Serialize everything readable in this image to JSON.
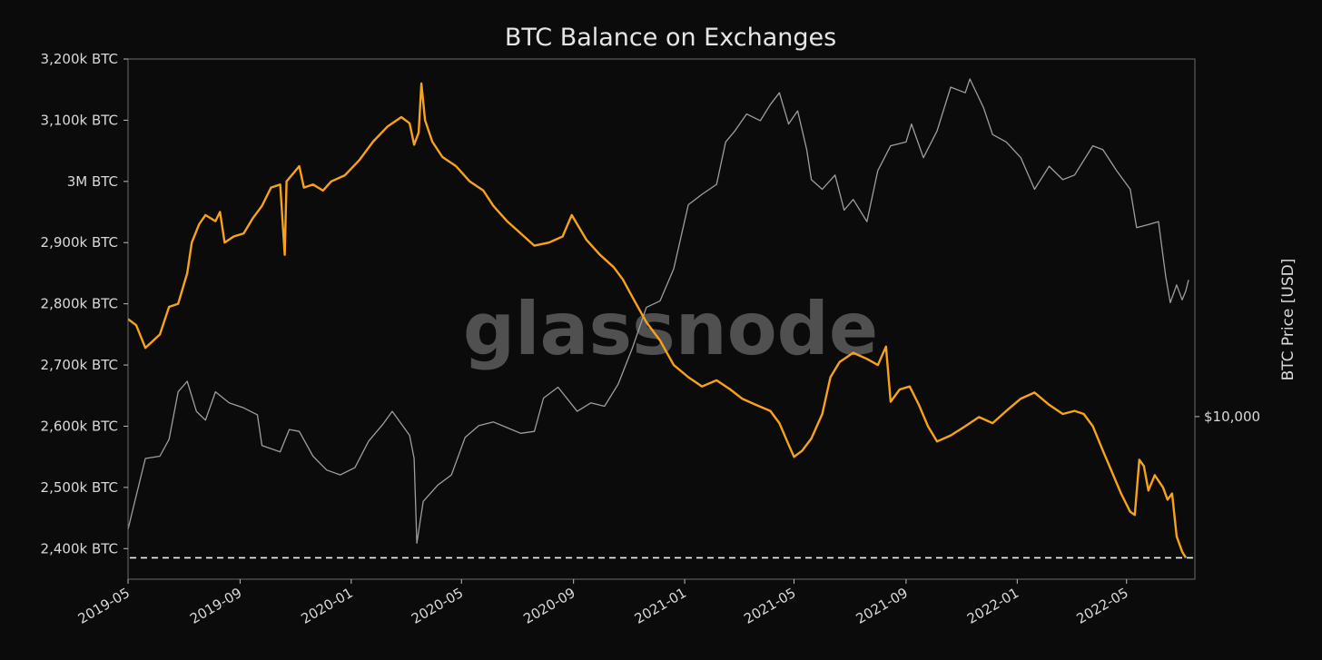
{
  "chart_data": {
    "type": "line",
    "title": "BTC Balance on Exchanges",
    "watermark": "glassnode",
    "ylabel_right": "BTC Price [USD]",
    "y_left_range": [
      2350,
      3200
    ],
    "y_left_ticks": [
      {
        "value": 3200,
        "label": "3,200k BTC"
      },
      {
        "value": 3100,
        "label": "3,100k BTC"
      },
      {
        "value": 3000,
        "label": "3M BTC"
      },
      {
        "value": 2900,
        "label": "2,900k BTC"
      },
      {
        "value": 2800,
        "label": "2,800k BTC"
      },
      {
        "value": 2700,
        "label": "2,700k BTC"
      },
      {
        "value": 2600,
        "label": "2,600k BTC"
      },
      {
        "value": 2500,
        "label": "2,500k BTC"
      },
      {
        "value": 2400,
        "label": "2,400k BTC"
      }
    ],
    "y_right_scale": "log",
    "y_right_range": [
      4000,
      75000
    ],
    "y_right_ticks": [
      {
        "value": 10000,
        "label": "$10,000"
      }
    ],
    "x_range": [
      "2019-05-01",
      "2022-07-15"
    ],
    "x_ticks": [
      "2019-05",
      "2019-09",
      "2020-01",
      "2020-05",
      "2020-09",
      "2021-01",
      "2021-05",
      "2021-09",
      "2022-01",
      "2022-05"
    ],
    "reference_line": {
      "axis": "left",
      "value": 2385,
      "style": "dashed",
      "color": "#f2f2f2"
    },
    "series": [
      {
        "axis": "left",
        "color": "#f7a21b",
        "points": [
          [
            "2019-05-01",
            2775
          ],
          [
            "2019-05-10",
            2765
          ],
          [
            "2019-05-20",
            2728
          ],
          [
            "2019-06-05",
            2750
          ],
          [
            "2019-06-15",
            2795
          ],
          [
            "2019-06-25",
            2800
          ],
          [
            "2019-07-05",
            2850
          ],
          [
            "2019-07-10",
            2900
          ],
          [
            "2019-07-18",
            2930
          ],
          [
            "2019-07-25",
            2945
          ],
          [
            "2019-08-05",
            2935
          ],
          [
            "2019-08-10",
            2950
          ],
          [
            "2019-08-15",
            2900
          ],
          [
            "2019-08-25",
            2910
          ],
          [
            "2019-09-05",
            2915
          ],
          [
            "2019-09-15",
            2940
          ],
          [
            "2019-09-25",
            2960
          ],
          [
            "2019-10-05",
            2990
          ],
          [
            "2019-10-15",
            2995
          ],
          [
            "2019-10-20",
            2880
          ],
          [
            "2019-10-22",
            3000
          ],
          [
            "2019-11-05",
            3025
          ],
          [
            "2019-11-10",
            2990
          ],
          [
            "2019-11-20",
            2995
          ],
          [
            "2019-12-01",
            2985
          ],
          [
            "2019-12-10",
            3000
          ],
          [
            "2019-12-25",
            3010
          ],
          [
            "2020-01-10",
            3035
          ],
          [
            "2020-01-25",
            3065
          ],
          [
            "2020-02-10",
            3090
          ],
          [
            "2020-02-25",
            3105
          ],
          [
            "2020-03-05",
            3095
          ],
          [
            "2020-03-10",
            3060
          ],
          [
            "2020-03-15",
            3080
          ],
          [
            "2020-03-18",
            3160
          ],
          [
            "2020-03-22",
            3100
          ],
          [
            "2020-03-30",
            3065
          ],
          [
            "2020-04-10",
            3040
          ],
          [
            "2020-04-25",
            3025
          ],
          [
            "2020-05-10",
            3000
          ],
          [
            "2020-05-25",
            2985
          ],
          [
            "2020-06-05",
            2960
          ],
          [
            "2020-06-20",
            2935
          ],
          [
            "2020-07-05",
            2915
          ],
          [
            "2020-07-20",
            2895
          ],
          [
            "2020-08-05",
            2900
          ],
          [
            "2020-08-20",
            2910
          ],
          [
            "2020-08-30",
            2945
          ],
          [
            "2020-09-05",
            2930
          ],
          [
            "2020-09-15",
            2905
          ],
          [
            "2020-09-30",
            2880
          ],
          [
            "2020-10-15",
            2860
          ],
          [
            "2020-10-25",
            2840
          ],
          [
            "2020-11-05",
            2810
          ],
          [
            "2020-11-20",
            2770
          ],
          [
            "2020-12-05",
            2740
          ],
          [
            "2020-12-20",
            2700
          ],
          [
            "2021-01-05",
            2680
          ],
          [
            "2021-01-20",
            2665
          ],
          [
            "2021-02-05",
            2675
          ],
          [
            "2021-02-20",
            2660
          ],
          [
            "2021-03-05",
            2645
          ],
          [
            "2021-03-20",
            2635
          ],
          [
            "2021-04-05",
            2625
          ],
          [
            "2021-04-15",
            2605
          ],
          [
            "2021-04-25",
            2570
          ],
          [
            "2021-05-01",
            2550
          ],
          [
            "2021-05-10",
            2560
          ],
          [
            "2021-05-20",
            2580
          ],
          [
            "2021-06-01",
            2620
          ],
          [
            "2021-06-10",
            2680
          ],
          [
            "2021-06-20",
            2705
          ],
          [
            "2021-07-05",
            2720
          ],
          [
            "2021-07-20",
            2710
          ],
          [
            "2021-08-01",
            2700
          ],
          [
            "2021-08-10",
            2730
          ],
          [
            "2021-08-15",
            2640
          ],
          [
            "2021-08-25",
            2660
          ],
          [
            "2021-09-05",
            2665
          ],
          [
            "2021-09-15",
            2635
          ],
          [
            "2021-09-25",
            2600
          ],
          [
            "2021-10-05",
            2575
          ],
          [
            "2021-10-20",
            2585
          ],
          [
            "2021-11-05",
            2600
          ],
          [
            "2021-11-20",
            2615
          ],
          [
            "2021-12-05",
            2605
          ],
          [
            "2021-12-20",
            2625
          ],
          [
            "2022-01-05",
            2645
          ],
          [
            "2022-01-20",
            2655
          ],
          [
            "2022-02-05",
            2635
          ],
          [
            "2022-02-20",
            2620
          ],
          [
            "2022-03-05",
            2625
          ],
          [
            "2022-03-15",
            2620
          ],
          [
            "2022-03-25",
            2600
          ],
          [
            "2022-04-05",
            2560
          ],
          [
            "2022-04-15",
            2525
          ],
          [
            "2022-04-25",
            2490
          ],
          [
            "2022-05-05",
            2460
          ],
          [
            "2022-05-10",
            2455
          ],
          [
            "2022-05-15",
            2545
          ],
          [
            "2022-05-20",
            2535
          ],
          [
            "2022-05-25",
            2495
          ],
          [
            "2022-06-01",
            2520
          ],
          [
            "2022-06-10",
            2500
          ],
          [
            "2022-06-15",
            2480
          ],
          [
            "2022-06-20",
            2490
          ],
          [
            "2022-06-25",
            2420
          ],
          [
            "2022-07-01",
            2395
          ],
          [
            "2022-07-05",
            2385
          ]
        ]
      },
      {
        "axis": "right",
        "color": "#9e9e9e",
        "points": [
          [
            "2019-05-01",
            5300
          ],
          [
            "2019-05-10",
            6400
          ],
          [
            "2019-05-20",
            7900
          ],
          [
            "2019-06-05",
            8000
          ],
          [
            "2019-06-15",
            8800
          ],
          [
            "2019-06-25",
            11500
          ],
          [
            "2019-07-05",
            12200
          ],
          [
            "2019-07-15",
            10300
          ],
          [
            "2019-07-25",
            9800
          ],
          [
            "2019-08-05",
            11500
          ],
          [
            "2019-08-20",
            10800
          ],
          [
            "2019-09-05",
            10500
          ],
          [
            "2019-09-20",
            10100
          ],
          [
            "2019-09-25",
            8500
          ],
          [
            "2019-10-15",
            8200
          ],
          [
            "2019-10-25",
            9300
          ],
          [
            "2019-11-05",
            9200
          ],
          [
            "2019-11-20",
            8000
          ],
          [
            "2019-12-05",
            7400
          ],
          [
            "2019-12-20",
            7200
          ],
          [
            "2020-01-05",
            7500
          ],
          [
            "2020-01-20",
            8700
          ],
          [
            "2020-02-05",
            9600
          ],
          [
            "2020-02-15",
            10300
          ],
          [
            "2020-02-25",
            9600
          ],
          [
            "2020-03-05",
            9000
          ],
          [
            "2020-03-10",
            7900
          ],
          [
            "2020-03-13",
            4900
          ],
          [
            "2020-03-20",
            6200
          ],
          [
            "2020-04-05",
            6800
          ],
          [
            "2020-04-20",
            7200
          ],
          [
            "2020-05-05",
            8900
          ],
          [
            "2020-05-20",
            9500
          ],
          [
            "2020-06-05",
            9700
          ],
          [
            "2020-06-20",
            9400
          ],
          [
            "2020-07-05",
            9100
          ],
          [
            "2020-07-20",
            9200
          ],
          [
            "2020-07-30",
            11100
          ],
          [
            "2020-08-15",
            11800
          ],
          [
            "2020-09-05",
            10300
          ],
          [
            "2020-09-20",
            10800
          ],
          [
            "2020-10-05",
            10600
          ],
          [
            "2020-10-20",
            12000
          ],
          [
            "2020-11-05",
            14800
          ],
          [
            "2020-11-20",
            18500
          ],
          [
            "2020-12-05",
            19200
          ],
          [
            "2020-12-20",
            23000
          ],
          [
            "2021-01-05",
            33000
          ],
          [
            "2021-01-20",
            35000
          ],
          [
            "2021-02-05",
            37000
          ],
          [
            "2021-02-15",
            47000
          ],
          [
            "2021-02-25",
            50000
          ],
          [
            "2021-03-10",
            55000
          ],
          [
            "2021-03-25",
            53000
          ],
          [
            "2021-04-05",
            58000
          ],
          [
            "2021-04-15",
            62000
          ],
          [
            "2021-04-25",
            52000
          ],
          [
            "2021-05-05",
            56000
          ],
          [
            "2021-05-15",
            45000
          ],
          [
            "2021-05-20",
            38000
          ],
          [
            "2021-06-01",
            36000
          ],
          [
            "2021-06-15",
            39000
          ],
          [
            "2021-06-25",
            32000
          ],
          [
            "2021-07-05",
            34000
          ],
          [
            "2021-07-20",
            30000
          ],
          [
            "2021-08-01",
            40000
          ],
          [
            "2021-08-15",
            46000
          ],
          [
            "2021-09-01",
            47000
          ],
          [
            "2021-09-07",
            52000
          ],
          [
            "2021-09-20",
            43000
          ],
          [
            "2021-10-05",
            50000
          ],
          [
            "2021-10-20",
            64000
          ],
          [
            "2021-11-05",
            62000
          ],
          [
            "2021-11-10",
            67000
          ],
          [
            "2021-11-25",
            57000
          ],
          [
            "2021-12-05",
            49000
          ],
          [
            "2021-12-20",
            47000
          ],
          [
            "2022-01-05",
            43000
          ],
          [
            "2022-01-20",
            36000
          ],
          [
            "2022-02-05",
            41000
          ],
          [
            "2022-02-20",
            38000
          ],
          [
            "2022-03-05",
            39000
          ],
          [
            "2022-03-25",
            46000
          ],
          [
            "2022-04-05",
            45000
          ],
          [
            "2022-04-20",
            40000
          ],
          [
            "2022-05-05",
            36000
          ],
          [
            "2022-05-12",
            29000
          ],
          [
            "2022-05-25",
            29500
          ],
          [
            "2022-06-05",
            30000
          ],
          [
            "2022-06-13",
            22000
          ],
          [
            "2022-06-18",
            19000
          ],
          [
            "2022-06-25",
            21000
          ],
          [
            "2022-07-01",
            19300
          ],
          [
            "2022-07-05",
            20300
          ],
          [
            "2022-07-08",
            21600
          ]
        ]
      }
    ]
  }
}
